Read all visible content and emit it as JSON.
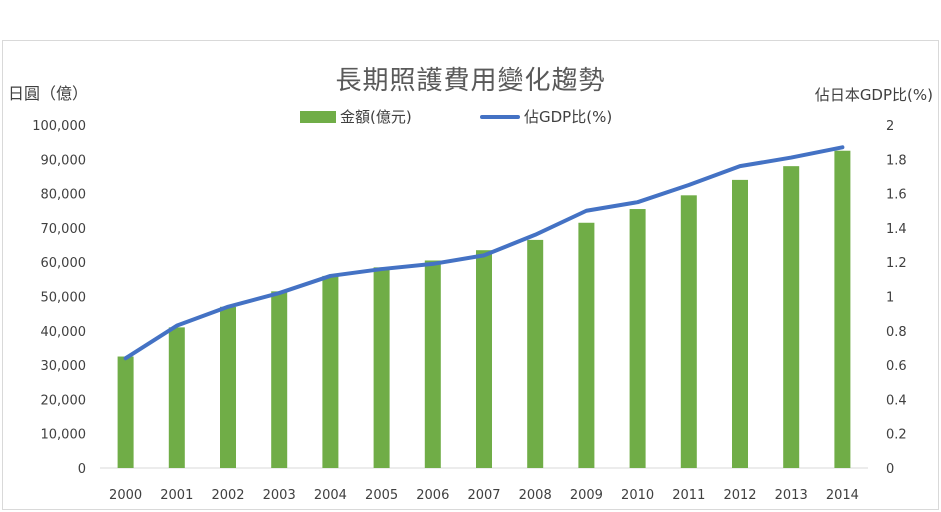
{
  "chart_data": {
    "type": "bar",
    "title": "長期照護費用變化趨勢",
    "ylabel_left": "日圓（億）",
    "ylabel_right": "佔日本GDP比(%)",
    "categories": [
      "2000",
      "2001",
      "2002",
      "2003",
      "2004",
      "2005",
      "2006",
      "2007",
      "2008",
      "2009",
      "2010",
      "2011",
      "2012",
      "2013",
      "2014"
    ],
    "series": [
      {
        "name": "金額(億元)",
        "type": "bar",
        "axis": "left",
        "color": "#70ad47",
        "values": [
          32500,
          41000,
          47000,
          51500,
          56000,
          58500,
          60500,
          63500,
          66500,
          71500,
          75500,
          79500,
          84000,
          88000,
          92500
        ]
      },
      {
        "name": "佔GDP比(%)",
        "type": "line",
        "axis": "right",
        "color": "#4472c4",
        "values": [
          0.64,
          0.83,
          0.94,
          1.02,
          1.12,
          1.16,
          1.19,
          1.24,
          1.36,
          1.5,
          1.55,
          1.65,
          1.76,
          1.81,
          1.87
        ]
      }
    ],
    "ylim_left": [
      0,
      100000
    ],
    "yticks_left": [
      "0",
      "10,000",
      "20,000",
      "30,000",
      "40,000",
      "50,000",
      "60,000",
      "70,000",
      "80,000",
      "90,000",
      "100,000"
    ],
    "ylim_right": [
      0,
      2
    ],
    "yticks_right": [
      "0",
      "0.2",
      "0.4",
      "0.6",
      "0.8",
      "1",
      "1.2",
      "1.4",
      "1.6",
      "1.8",
      "2"
    ],
    "legend_position": "top-center",
    "grid": false
  }
}
